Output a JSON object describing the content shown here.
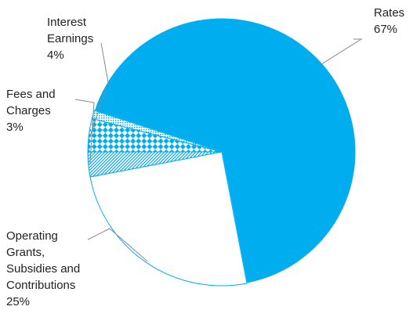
{
  "chart_data": {
    "type": "pie",
    "title": "",
    "slices": [
      {
        "label_lines": [
          "Rates"
        ],
        "value_text": "67%",
        "value": 67,
        "fill": "solid",
        "color": "#00aeef"
      },
      {
        "label_lines": [
          "Operating",
          "Grants,",
          "Subsidies and",
          "Contributions"
        ],
        "value_text": "25%",
        "value": 25,
        "fill": "white-outline",
        "color": "#00aeef"
      },
      {
        "label_lines": [
          "Fees and",
          "Charges"
        ],
        "value_text": "3%",
        "value": 3,
        "fill": "diagonal-hatch",
        "color": "#00aeef"
      },
      {
        "label_lines": [
          "Interest",
          "Earnings"
        ],
        "value_text": "4%",
        "value": 4,
        "fill": "checkerboard",
        "color": "#00aeef"
      },
      {
        "label_lines": [],
        "value_text": "",
        "value": 1,
        "fill": "dotted",
        "color": "#00aeef"
      }
    ],
    "legend": "none"
  }
}
